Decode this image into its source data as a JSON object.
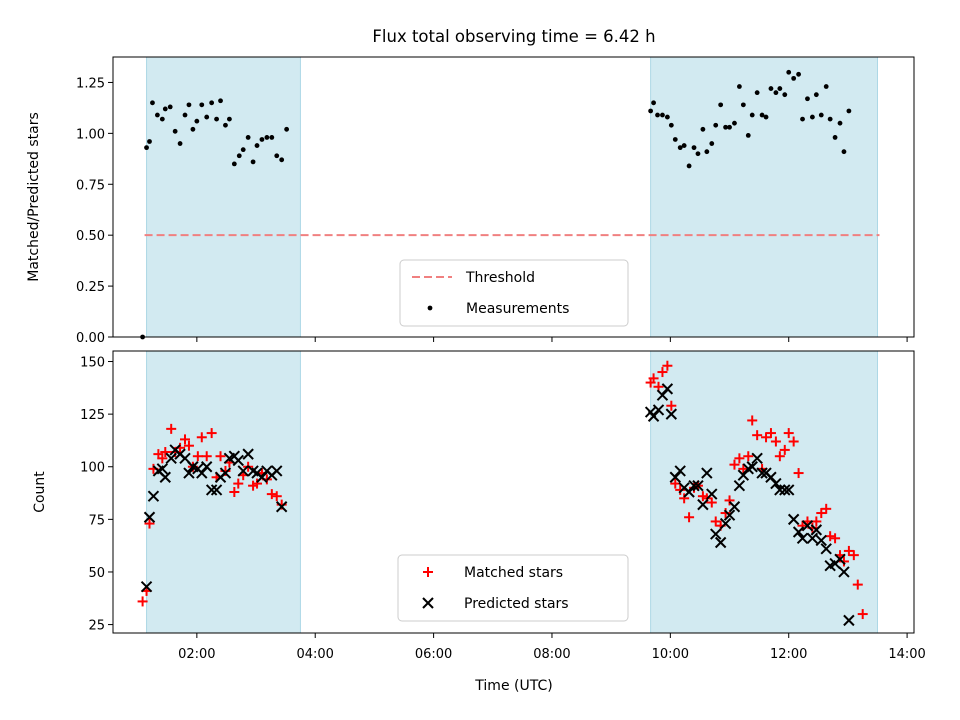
{
  "chart_data": [
    {
      "type": "scatter",
      "title": "Flux total observing time = 6.42 h",
      "xlabel": "",
      "ylabel": "Matched/Predicted stars",
      "ylim": [
        0,
        1.375
      ],
      "xlim": [
        "00:35",
        "14:07"
      ],
      "yticks": [
        "0.00",
        "0.25",
        "0.50",
        "0.75",
        "1.00",
        "1.25"
      ],
      "legend_position": "lower-center",
      "grid": false,
      "shaded_intervals": [
        [
          "01:09",
          "03:45"
        ],
        [
          "09:40",
          "13:30"
        ]
      ],
      "shade_color": "#add8e6",
      "threshold": {
        "name": "Threshold",
        "value": 0.5,
        "x_range": [
          "01:07",
          "13:32"
        ],
        "color": "#f08080",
        "style": "dashed"
      },
      "series": [
        {
          "name": "Measurements",
          "color": "#000000",
          "marker": "dot",
          "points": [
            [
              "01:05",
              0.0
            ],
            [
              "01:09",
              0.93
            ],
            [
              "01:12",
              0.96
            ],
            [
              "01:15",
              1.15
            ],
            [
              "01:20",
              1.09
            ],
            [
              "01:25",
              1.07
            ],
            [
              "01:28",
              1.12
            ],
            [
              "01:33",
              1.13
            ],
            [
              "01:38",
              1.01
            ],
            [
              "01:43",
              0.95
            ],
            [
              "01:48",
              1.09
            ],
            [
              "01:52",
              1.14
            ],
            [
              "01:56",
              1.02
            ],
            [
              "02:00",
              1.06
            ],
            [
              "02:05",
              1.14
            ],
            [
              "02:10",
              1.08
            ],
            [
              "02:15",
              1.15
            ],
            [
              "02:20",
              1.07
            ],
            [
              "02:24",
              1.16
            ],
            [
              "02:29",
              1.04
            ],
            [
              "02:33",
              1.07
            ],
            [
              "02:38",
              0.85
            ],
            [
              "02:43",
              0.89
            ],
            [
              "02:47",
              0.92
            ],
            [
              "02:52",
              0.98
            ],
            [
              "02:57",
              0.86
            ],
            [
              "03:01",
              0.94
            ],
            [
              "03:06",
              0.97
            ],
            [
              "03:11",
              0.98
            ],
            [
              "03:16",
              0.98
            ],
            [
              "03:21",
              0.89
            ],
            [
              "03:26",
              0.87
            ],
            [
              "03:31",
              1.02
            ],
            [
              "09:40",
              1.11
            ],
            [
              "09:43",
              1.15
            ],
            [
              "09:47",
              1.09
            ],
            [
              "09:52",
              1.09
            ],
            [
              "09:57",
              1.08
            ],
            [
              "10:01",
              1.04
            ],
            [
              "10:05",
              0.97
            ],
            [
              "10:10",
              0.93
            ],
            [
              "10:14",
              0.94
            ],
            [
              "10:19",
              0.84
            ],
            [
              "10:24",
              0.93
            ],
            [
              "10:28",
              0.9
            ],
            [
              "10:33",
              1.02
            ],
            [
              "10:37",
              0.91
            ],
            [
              "10:42",
              0.95
            ],
            [
              "10:46",
              1.04
            ],
            [
              "10:51",
              1.14
            ],
            [
              "10:56",
              1.03
            ],
            [
              "11:00",
              1.03
            ],
            [
              "11:05",
              1.05
            ],
            [
              "11:10",
              1.23
            ],
            [
              "11:14",
              1.14
            ],
            [
              "11:19",
              0.99
            ],
            [
              "11:23",
              1.09
            ],
            [
              "11:28",
              1.2
            ],
            [
              "11:33",
              1.09
            ],
            [
              "11:37",
              1.08
            ],
            [
              "11:42",
              1.22
            ],
            [
              "11:47",
              1.2
            ],
            [
              "11:51",
              1.22
            ],
            [
              "11:56",
              1.19
            ],
            [
              "12:00",
              1.3
            ],
            [
              "12:05",
              1.27
            ],
            [
              "12:10",
              1.29
            ],
            [
              "12:14",
              1.07
            ],
            [
              "12:19",
              1.17
            ],
            [
              "12:24",
              1.08
            ],
            [
              "12:28",
              1.19
            ],
            [
              "12:33",
              1.09
            ],
            [
              "12:38",
              1.23
            ],
            [
              "12:42",
              1.07
            ],
            [
              "12:47",
              0.98
            ],
            [
              "12:52",
              1.05
            ],
            [
              "12:56",
              0.91
            ],
            [
              "13:01",
              1.11
            ]
          ]
        }
      ]
    },
    {
      "type": "scatter",
      "title": "",
      "xlabel": "Time (UTC)",
      "ylabel": "Count",
      "ylim": [
        21,
        155
      ],
      "xlim": [
        "00:35",
        "14:07"
      ],
      "xticks": [
        "02:00",
        "04:00",
        "06:00",
        "08:00",
        "10:00",
        "12:00",
        "14:00"
      ],
      "yticks": [
        "25",
        "50",
        "75",
        "100",
        "125",
        "150"
      ],
      "legend_position": "lower-center",
      "grid": false,
      "shaded_intervals": [
        [
          "01:09",
          "03:45"
        ],
        [
          "09:40",
          "13:30"
        ]
      ],
      "series": [
        {
          "name": "Matched stars",
          "color": "#ff0000",
          "marker": "plus",
          "points": [
            [
              "01:05",
              36
            ],
            [
              "01:09",
              41
            ],
            [
              "01:12",
              73
            ],
            [
              "01:16",
              99
            ],
            [
              "01:21",
              106
            ],
            [
              "01:25",
              104
            ],
            [
              "01:28",
              107
            ],
            [
              "01:34",
              118
            ],
            [
              "01:38",
              107
            ],
            [
              "01:43",
              109
            ],
            [
              "01:48",
              113
            ],
            [
              "01:52",
              110
            ],
            [
              "01:56",
              100
            ],
            [
              "02:01",
              105
            ],
            [
              "02:05",
              114
            ],
            [
              "02:10",
              105
            ],
            [
              "02:15",
              116
            ],
            [
              "02:20",
              95
            ],
            [
              "02:24",
              105
            ],
            [
              "02:29",
              98
            ],
            [
              "02:33",
              102
            ],
            [
              "02:38",
              88
            ],
            [
              "02:42",
              92
            ],
            [
              "02:47",
              96
            ],
            [
              "02:52",
              100
            ],
            [
              "02:57",
              91
            ],
            [
              "03:01",
              92
            ],
            [
              "03:06",
              97
            ],
            [
              "03:11",
              94
            ],
            [
              "03:16",
              87
            ],
            [
              "03:21",
              86
            ],
            [
              "03:26",
              82
            ],
            [
              "09:40",
              140
            ],
            [
              "09:43",
              142
            ],
            [
              "09:48",
              138
            ],
            [
              "09:52",
              145
            ],
            [
              "09:57",
              148
            ],
            [
              "10:01",
              129
            ],
            [
              "10:05",
              92
            ],
            [
              "10:10",
              89
            ],
            [
              "10:14",
              85
            ],
            [
              "10:19",
              76
            ],
            [
              "10:24",
              90
            ],
            [
              "10:28",
              91
            ],
            [
              "10:33",
              86
            ],
            [
              "10:37",
              85
            ],
            [
              "10:42",
              83
            ],
            [
              "10:46",
              74
            ],
            [
              "10:51",
              72
            ],
            [
              "10:56",
              78
            ],
            [
              "11:00",
              84
            ],
            [
              "11:05",
              101
            ],
            [
              "11:10",
              104
            ],
            [
              "11:14",
              99
            ],
            [
              "11:19",
              105
            ],
            [
              "11:23",
              122
            ],
            [
              "11:28",
              115
            ],
            [
              "11:33",
              99
            ],
            [
              "11:37",
              114
            ],
            [
              "11:42",
              116
            ],
            [
              "11:47",
              112
            ],
            [
              "11:51",
              105
            ],
            [
              "11:56",
              108
            ],
            [
              "12:00",
              116
            ],
            [
              "12:05",
              112
            ],
            [
              "12:10",
              97
            ],
            [
              "12:14",
              72
            ],
            [
              "12:19",
              74
            ],
            [
              "12:24",
              71
            ],
            [
              "12:28",
              74
            ],
            [
              "12:33",
              78
            ],
            [
              "12:38",
              80
            ],
            [
              "12:42",
              67
            ],
            [
              "12:47",
              66
            ],
            [
              "12:52",
              58
            ],
            [
              "12:56",
              55
            ],
            [
              "13:01",
              60
            ],
            [
              "13:06",
              58
            ],
            [
              "13:10",
              44
            ],
            [
              "13:15",
              30
            ]
          ]
        },
        {
          "name": "Predicted stars",
          "color": "#000000",
          "marker": "x",
          "points": [
            [
              "01:09",
              43
            ],
            [
              "01:12",
              76
            ],
            [
              "01:16",
              86
            ],
            [
              "01:21",
              98
            ],
            [
              "01:25",
              99
            ],
            [
              "01:28",
              95
            ],
            [
              "01:34",
              104
            ],
            [
              "01:38",
              108
            ],
            [
              "01:43",
              106
            ],
            [
              "01:48",
              104
            ],
            [
              "01:52",
              97
            ],
            [
              "01:56",
              100
            ],
            [
              "02:01",
              99
            ],
            [
              "02:05",
              97
            ],
            [
              "02:10",
              100
            ],
            [
              "02:15",
              89
            ],
            [
              "02:20",
              89
            ],
            [
              "02:24",
              95
            ],
            [
              "02:29",
              97
            ],
            [
              "02:33",
              104
            ],
            [
              "02:38",
              105
            ],
            [
              "02:42",
              103
            ],
            [
              "02:47",
              98
            ],
            [
              "02:52",
              106
            ],
            [
              "02:57",
              98
            ],
            [
              "03:01",
              97
            ],
            [
              "03:06",
              95
            ],
            [
              "03:11",
              98
            ],
            [
              "03:16",
              96
            ],
            [
              "03:21",
              98
            ],
            [
              "03:26",
              81
            ],
            [
              "09:40",
              126
            ],
            [
              "09:43",
              124
            ],
            [
              "09:48",
              127
            ],
            [
              "09:52",
              134
            ],
            [
              "09:57",
              137
            ],
            [
              "10:01",
              125
            ],
            [
              "10:05",
              95
            ],
            [
              "10:10",
              98
            ],
            [
              "10:14",
              90
            ],
            [
              "10:19",
              88
            ],
            [
              "10:24",
              91
            ],
            [
              "10:28",
              91
            ],
            [
              "10:33",
              82
            ],
            [
              "10:37",
              97
            ],
            [
              "10:42",
              87
            ],
            [
              "10:46",
              68
            ],
            [
              "10:51",
              64
            ],
            [
              "10:56",
              73
            ],
            [
              "11:00",
              77
            ],
            [
              "11:05",
              81
            ],
            [
              "11:10",
              91
            ],
            [
              "11:14",
              96
            ],
            [
              "11:19",
              99
            ],
            [
              "11:23",
              100
            ],
            [
              "11:28",
              104
            ],
            [
              "11:33",
              97
            ],
            [
              "11:37",
              97
            ],
            [
              "11:42",
              95
            ],
            [
              "11:47",
              92
            ],
            [
              "11:51",
              89
            ],
            [
              "11:56",
              89
            ],
            [
              "12:00",
              89
            ],
            [
              "12:05",
              75
            ],
            [
              "12:10",
              69
            ],
            [
              "12:14",
              66
            ],
            [
              "12:19",
              72
            ],
            [
              "12:24",
              66
            ],
            [
              "12:28",
              70
            ],
            [
              "12:33",
              65
            ],
            [
              "12:38",
              61
            ],
            [
              "12:42",
              53
            ],
            [
              "12:47",
              54
            ],
            [
              "12:52",
              56
            ],
            [
              "12:56",
              50
            ],
            [
              "13:01",
              27
            ]
          ]
        }
      ]
    }
  ]
}
